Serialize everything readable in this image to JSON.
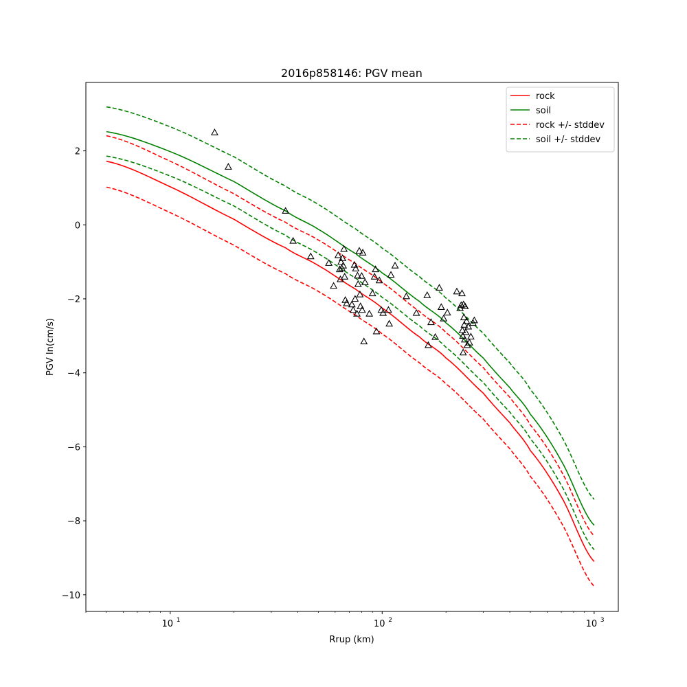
{
  "chart_data": {
    "type": "line",
    "title": "2016p858146: PGV mean",
    "xlabel": "Rrup (km)",
    "ylabel": "PGV ln(cm/s)",
    "xscale": "log",
    "xlim": [
      4,
      1300
    ],
    "ylim": [
      -10.45,
      3.85
    ],
    "x_ticks": [
      10,
      100,
      1000
    ],
    "x_tick_labels": [
      {
        "base": "10",
        "exp": "1"
      },
      {
        "base": "10",
        "exp": "2"
      },
      {
        "base": "10",
        "exp": "3"
      }
    ],
    "y_ticks": [
      2,
      0,
      -2,
      -4,
      -6,
      -8,
      -10
    ],
    "y_tick_labels": [
      "2",
      "0",
      "−2",
      "−4",
      "−6",
      "−8",
      "−10"
    ],
    "grid": false,
    "legend_position": "top-right",
    "series": [
      {
        "name": "rock",
        "color": "#ff0000",
        "dash": "solid",
        "x": [
          5,
          10,
          20,
          35,
          50,
          75,
          100,
          150,
          200,
          300,
          400,
          500,
          700,
          1000
        ],
        "y": [
          1.72,
          1.03,
          0.15,
          -0.62,
          -1.1,
          -1.74,
          -2.25,
          -3.03,
          -3.6,
          -4.55,
          -5.35,
          -6.1,
          -7.35,
          -9.1
        ]
      },
      {
        "name": "soil",
        "color": "#008000",
        "dash": "solid",
        "x": [
          5,
          10,
          20,
          35,
          50,
          75,
          100,
          150,
          200,
          300,
          400,
          500,
          700,
          1000
        ],
        "y": [
          2.52,
          1.98,
          1.17,
          0.38,
          -0.12,
          -0.78,
          -1.3,
          -2.07,
          -2.65,
          -3.6,
          -4.4,
          -5.12,
          -6.38,
          -8.12
        ]
      },
      {
        "name": "rock +/- stddev",
        "color": "#ff0000",
        "dash": "dashed",
        "x": [
          5,
          10,
          20,
          35,
          50,
          75,
          100,
          150,
          200,
          300,
          400,
          500,
          700,
          1000
        ],
        "y": [
          2.41,
          1.72,
          0.84,
          0.07,
          -0.41,
          -1.05,
          -1.56,
          -2.34,
          -2.91,
          -3.86,
          -4.66,
          -5.41,
          -6.66,
          -8.41
        ]
      },
      {
        "name": "",
        "color": "#ff0000",
        "dash": "dashed",
        "x": [
          5,
          10,
          20,
          35,
          50,
          75,
          100,
          150,
          200,
          300,
          400,
          500,
          700,
          1000
        ],
        "y": [
          1.02,
          0.33,
          -0.55,
          -1.32,
          -1.8,
          -2.44,
          -2.95,
          -3.73,
          -4.3,
          -5.25,
          -6.05,
          -6.8,
          -8.05,
          -9.77
        ]
      },
      {
        "name": "soil +/- stddev",
        "color": "#008000",
        "dash": "dashed",
        "x": [
          5,
          10,
          20,
          35,
          50,
          75,
          100,
          150,
          200,
          300,
          400,
          500,
          700,
          1000
        ],
        "y": [
          3.19,
          2.65,
          1.84,
          1.05,
          0.55,
          -0.11,
          -0.63,
          -1.4,
          -1.98,
          -2.93,
          -3.73,
          -4.45,
          -5.71,
          -7.42
        ]
      },
      {
        "name": "",
        "color": "#008000",
        "dash": "dashed",
        "x": [
          5,
          10,
          20,
          35,
          50,
          75,
          100,
          150,
          200,
          300,
          400,
          500,
          700,
          1000
        ],
        "y": [
          1.86,
          1.32,
          0.51,
          -0.28,
          -0.78,
          -1.44,
          -1.96,
          -2.73,
          -3.31,
          -4.26,
          -5.06,
          -5.78,
          -7.04,
          -8.78
        ]
      }
    ],
    "observations": {
      "marker": "triangle-open",
      "color": "#000000",
      "x": [
        16.2,
        18.8,
        35,
        38,
        46,
        56,
        59,
        62,
        63,
        63.5,
        64,
        64.5,
        65,
        65.5,
        66,
        66.5,
        67,
        68,
        72,
        73,
        74,
        74.5,
        75,
        76,
        76.5,
        77,
        78,
        78.5,
        79,
        80,
        80.5,
        81,
        82,
        83,
        87,
        90,
        92,
        93,
        94,
        97,
        99,
        101,
        107,
        108,
        110,
        115,
        130,
        145,
        163,
        165,
        170,
        178,
        186,
        190,
        195,
        203,
        225,
        233,
        236,
        238,
        239,
        240,
        241,
        242,
        243,
        244,
        245,
        246,
        248,
        250,
        252,
        255,
        258,
        262,
        268,
        272
      ],
      "y": [
        2.5,
        1.57,
        0.38,
        -0.43,
        -0.85,
        -1.03,
        -1.65,
        -0.82,
        -1.2,
        -1.47,
        -1.0,
        -1.17,
        -0.9,
        -1.1,
        -0.65,
        -1.4,
        -2.03,
        -2.12,
        -2.15,
        -2.3,
        -1.08,
        -2.0,
        -1.18,
        -2.4,
        -1.37,
        -1.6,
        -0.7,
        -1.88,
        -2.2,
        -1.38,
        -2.3,
        -0.75,
        -3.15,
        -1.55,
        -2.4,
        -1.85,
        -1.4,
        -1.2,
        -2.88,
        -1.5,
        -2.3,
        -2.38,
        -2.3,
        -2.67,
        -1.35,
        -1.1,
        -1.93,
        -2.38,
        -1.9,
        -3.25,
        -2.63,
        -3.03,
        -1.7,
        -2.22,
        -2.53,
        -2.37,
        -1.8,
        -2.25,
        -2.17,
        -1.85,
        -2.85,
        -3.0,
        -3.45,
        -2.15,
        -2.5,
        -2.7,
        -3.1,
        -2.2,
        -2.9,
        -2.6,
        -3.25,
        -2.75,
        -3.18,
        -3.02,
        -2.65,
        -2.58
      ]
    }
  }
}
